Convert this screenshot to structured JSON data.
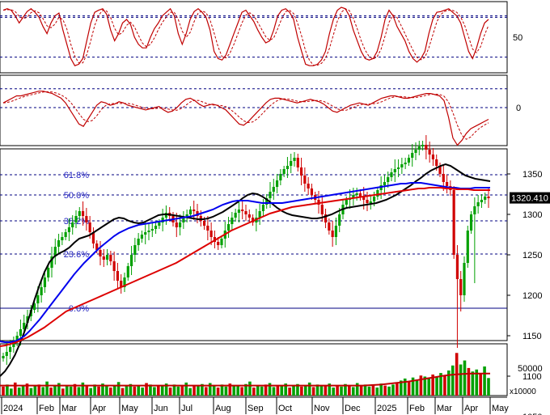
{
  "chart_data": [
    {
      "panel": "stochastic",
      "type": "line",
      "series": [
        {
          "values": [
            88,
            90,
            88,
            80,
            70,
            78,
            86,
            90,
            85,
            78,
            65,
            55,
            70,
            80,
            84,
            60,
            40,
            20,
            10,
            12,
            20,
            45,
            70,
            85,
            88,
            90,
            82,
            60,
            45,
            55,
            70,
            75,
            68,
            50,
            40,
            35,
            35,
            50,
            62,
            70,
            80,
            85,
            90,
            80,
            55,
            40,
            55,
            75,
            86,
            90,
            85,
            78,
            60,
            30,
            20,
            18,
            25,
            40,
            55,
            70,
            85,
            88,
            80,
            72,
            60,
            50,
            42,
            45,
            60,
            80,
            88,
            90,
            85,
            75,
            50,
            30,
            12,
            10,
            10,
            12,
            18,
            30,
            55,
            75,
            88,
            92,
            90,
            80,
            60,
            45,
            30,
            20,
            18,
            20,
            30,
            50,
            75,
            88,
            80,
            65,
            55,
            45,
            30,
            20,
            15,
            20,
            30,
            55,
            75,
            85,
            86,
            88,
            90,
            85,
            80,
            70,
            50,
            30,
            20,
            35,
            55,
            70,
            75
          ]
        }
      ],
      "reference_lines": [
        50
      ],
      "ytick_labels": [
        "50"
      ]
    },
    {
      "panel": "macd",
      "type": "line",
      "series": [
        {
          "values": [
            4,
            6,
            8,
            10,
            10,
            11,
            12,
            13,
            14,
            14,
            13,
            12,
            10,
            8,
            4,
            -2,
            -8,
            -14,
            -16,
            -10,
            -4,
            2,
            5,
            4,
            2,
            3,
            5,
            4,
            2,
            1,
            0,
            -1,
            -2,
            -1,
            0,
            1,
            -2,
            -4,
            -3,
            0,
            4,
            7,
            8,
            6,
            3,
            1,
            2,
            3,
            2,
            0,
            -2,
            -6,
            -10,
            -14,
            -15,
            -12,
            -8,
            -4,
            0,
            4,
            7,
            8,
            8,
            7,
            6,
            5,
            4,
            5,
            6,
            7,
            6,
            5,
            3,
            0,
            -3,
            -4,
            -2,
            0,
            2,
            3,
            4,
            3,
            2,
            4,
            6,
            8,
            9,
            10,
            10,
            9,
            8,
            8,
            9,
            10,
            11,
            12,
            12,
            11,
            10,
            6,
            -8,
            -26,
            -32,
            -28,
            -22,
            -18,
            -16,
            -14,
            -12,
            -10
          ]
        }
      ],
      "reference_lines": [
        0
      ],
      "ytick_labels": [
        "0"
      ]
    },
    {
      "panel": "price",
      "type": "candlestick",
      "ylim": [
        1000,
        1410
      ],
      "yticks": [
        1050,
        1100,
        1150,
        1200,
        1250,
        1300,
        1350
      ],
      "last_value": "1320.410",
      "x_labels": [
        "2024",
        "Feb",
        "Mar",
        "Apr",
        "May",
        "Jun",
        "Jul",
        "Aug",
        "Sep",
        "Oct",
        "Nov",
        "Dec",
        "2025",
        "Feb",
        "Mar",
        "Apr",
        "May"
      ],
      "closes": [
        1125,
        1130,
        1136,
        1142,
        1150,
        1158,
        1166,
        1174,
        1182,
        1190,
        1200,
        1210,
        1222,
        1234,
        1248,
        1260,
        1268,
        1272,
        1278,
        1284,
        1290,
        1298,
        1304,
        1298,
        1290,
        1278,
        1264,
        1256,
        1248,
        1244,
        1250,
        1242,
        1230,
        1218,
        1210,
        1222,
        1236,
        1250,
        1262,
        1270,
        1275,
        1278,
        1280,
        1282,
        1286,
        1290,
        1296,
        1302,
        1298,
        1290,
        1284,
        1290,
        1296,
        1300,
        1306,
        1304,
        1298,
        1292,
        1286,
        1280,
        1272,
        1266,
        1262,
        1270,
        1280,
        1288,
        1296,
        1302,
        1306,
        1304,
        1300,
        1296,
        1290,
        1296,
        1304,
        1312,
        1320,
        1328,
        1334,
        1342,
        1350,
        1356,
        1360,
        1366,
        1370,
        1358,
        1348,
        1338,
        1332,
        1324,
        1318,
        1312,
        1300,
        1290,
        1280,
        1272,
        1286,
        1300,
        1312,
        1318,
        1320,
        1324,
        1326,
        1322,
        1318,
        1314,
        1316,
        1322,
        1330,
        1336,
        1340,
        1346,
        1352,
        1356,
        1358,
        1362,
        1364,
        1370,
        1376,
        1380,
        1384,
        1386,
        1380,
        1374,
        1368,
        1360,
        1350,
        1340,
        1335,
        1330,
        1250,
        1220,
        1200,
        1240,
        1280,
        1300,
        1310,
        1315,
        1318,
        1322,
        1320
      ],
      "ma_series": [
        {
          "color": "#000000",
          "values": [
            1100,
            1106,
            1115,
            1126,
            1140,
            1156,
            1175,
            1195,
            1213,
            1229,
            1241,
            1248,
            1252,
            1255,
            1259,
            1265,
            1270,
            1272,
            1274,
            1278,
            1282,
            1286,
            1290,
            1294,
            1296,
            1295,
            1292,
            1290,
            1289,
            1290,
            1293,
            1296,
            1299,
            1300,
            1300,
            1299,
            1298,
            1297,
            1296,
            1295,
            1294,
            1294,
            1295,
            1297,
            1300,
            1303,
            1307,
            1311,
            1315,
            1320,
            1324,
            1326,
            1325,
            1322,
            1318,
            1313,
            1308,
            1304,
            1301,
            1299,
            1298,
            1297,
            1296,
            1295,
            1295,
            1296,
            1298,
            1300,
            1303,
            1306,
            1308,
            1309,
            1310,
            1311,
            1312,
            1313,
            1314,
            1316,
            1318,
            1321,
            1324,
            1328,
            1332,
            1336,
            1341,
            1345,
            1350,
            1354,
            1357,
            1360,
            1362,
            1360,
            1356,
            1352,
            1348,
            1346,
            1344,
            1343,
            1342,
            1341
          ]
        },
        {
          "color": "#0000ee",
          "values": [
            1143,
            1142,
            1142,
            1143,
            1146,
            1150,
            1156,
            1163,
            1170,
            1178,
            1186,
            1194,
            1202,
            1210,
            1218,
            1226,
            1233,
            1240,
            1246,
            1252,
            1258,
            1263,
            1268,
            1273,
            1277,
            1280,
            1283,
            1285,
            1287,
            1288,
            1289,
            1290,
            1291,
            1292,
            1293,
            1294,
            1295,
            1296,
            1297,
            1298,
            1300,
            1302,
            1304,
            1306,
            1309,
            1312,
            1314,
            1316,
            1317,
            1317,
            1317,
            1316,
            1315,
            1314,
            1314,
            1314,
            1314,
            1314,
            1315,
            1316,
            1317,
            1318,
            1319,
            1320,
            1321,
            1322,
            1323,
            1324,
            1325,
            1326,
            1327,
            1328,
            1329,
            1330,
            1331,
            1332,
            1333,
            1334,
            1335,
            1336,
            1337,
            1338,
            1338,
            1339,
            1339,
            1339,
            1338,
            1337,
            1336,
            1335,
            1334,
            1333,
            1333,
            1332,
            1332,
            1332,
            1333,
            1333,
            1333,
            1333
          ]
        },
        {
          "color": "#dd0000",
          "values": [
            1137,
            1138,
            1140,
            1142,
            1145,
            1148,
            1152,
            1156,
            1160,
            1165,
            1170,
            1175,
            1180,
            1183,
            1186,
            1189,
            1192,
            1195,
            1198,
            1201,
            1204,
            1207,
            1210,
            1213,
            1216,
            1219,
            1222,
            1225,
            1228,
            1231,
            1234,
            1237,
            1240,
            1244,
            1248,
            1252,
            1256,
            1260,
            1264,
            1268,
            1272,
            1276,
            1280,
            1283,
            1286,
            1289,
            1292,
            1295,
            1298,
            1301,
            1303,
            1305,
            1307,
            1309,
            1310,
            1311,
            1312,
            1313,
            1314,
            1315,
            1316,
            1317,
            1318,
            1319,
            1320,
            1321,
            1322,
            1323,
            1324,
            1325,
            1326,
            1327,
            1328,
            1329,
            1330,
            1331,
            1332,
            1332,
            1333,
            1333,
            1333,
            1332,
            1332,
            1331,
            1331,
            1331,
            1330,
            1330,
            1330,
            1330
          ]
        }
      ],
      "retracement_levels": [
        {
          "label": "61.8%",
          "value": 1349
        },
        {
          "label": "50.0%",
          "value": 1324
        },
        {
          "label": "38.2%",
          "value": 1292
        },
        {
          "label": "23.6%",
          "value": 1251
        },
        {
          "label": "0.0%",
          "value": 1184
        }
      ]
    },
    {
      "panel": "volume",
      "type": "bar",
      "yticks": [
        50000
      ],
      "unit_label": "x10000",
      "volumes": [
        18,
        22,
        14,
        26,
        16,
        20,
        24,
        15,
        19,
        22,
        17,
        28,
        16,
        20,
        25,
        14,
        21,
        18,
        23,
        17,
        26,
        19,
        15,
        22,
        18,
        24,
        20,
        16,
        21,
        27,
        15,
        19,
        23,
        18,
        20,
        16,
        25,
        22,
        17,
        21,
        19,
        24,
        16,
        22,
        18,
        20,
        26,
        15,
        21,
        19,
        23,
        17,
        25,
        20,
        16,
        22,
        18,
        24,
        19,
        21,
        17,
        23,
        28,
        16,
        20,
        18,
        22,
        25,
        17,
        21,
        19,
        24,
        16,
        20,
        23,
        18,
        21,
        26,
        17,
        22,
        19,
        20,
        24,
        16,
        21,
        18,
        23,
        20,
        17,
        25,
        19,
        22,
        18,
        21,
        16,
        24,
        20,
        18,
        22,
        26,
        30,
        34,
        28,
        36,
        32,
        40,
        38,
        35,
        42,
        38,
        45,
        40,
        50,
        60,
        85,
        62,
        70,
        55,
        48,
        52,
        44,
        58,
        35
      ],
      "ma_values": [
        20,
        20,
        20,
        20,
        20,
        20,
        20,
        20,
        20,
        20,
        20,
        20,
        20,
        20,
        20,
        20,
        20,
        20,
        20,
        20,
        20,
        20,
        20,
        20,
        20,
        20,
        20,
        20,
        20,
        20,
        20,
        20,
        20,
        20,
        20,
        20,
        20,
        20,
        20,
        20,
        20,
        21,
        22,
        24,
        26,
        28,
        31,
        34,
        37,
        40,
        42,
        43,
        44,
        44,
        44
      ]
    }
  ]
}
